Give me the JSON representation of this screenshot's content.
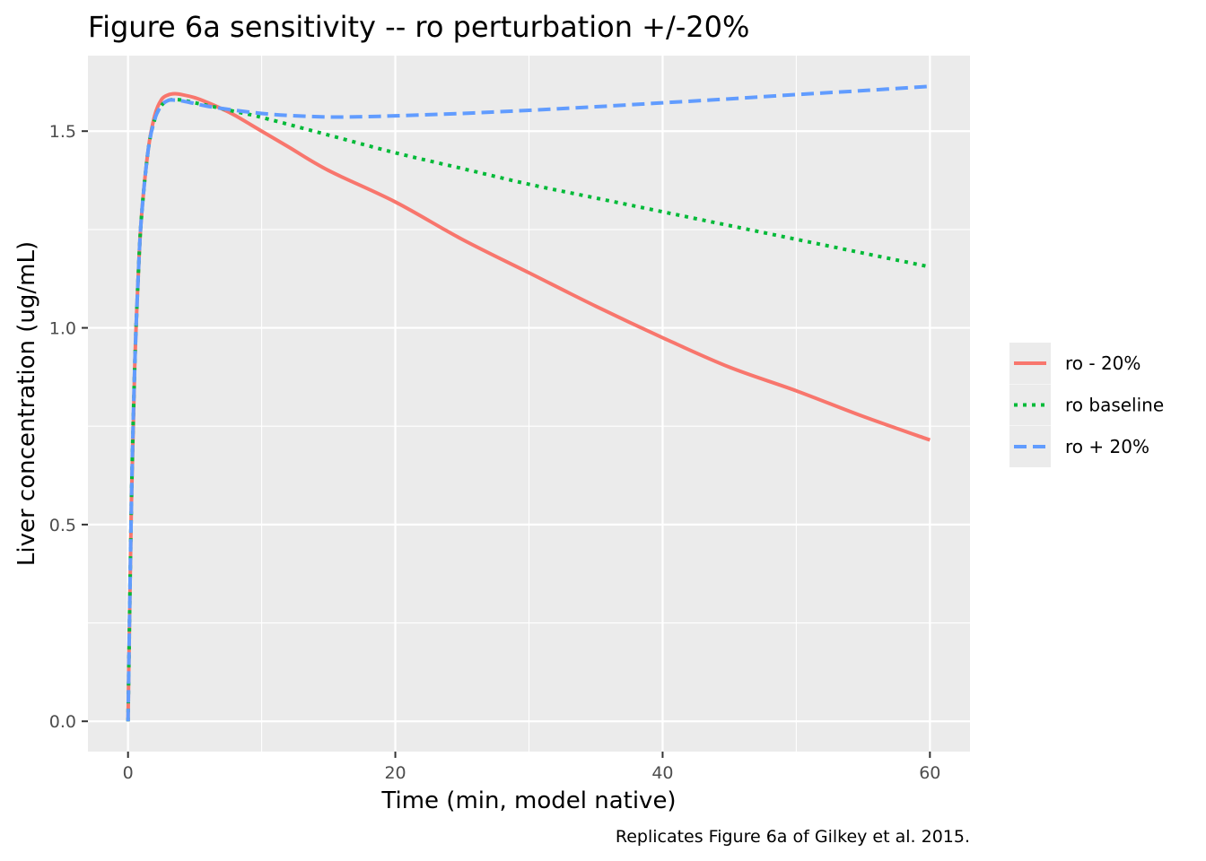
{
  "chart_data": {
    "type": "line",
    "title": "Figure 6a sensitivity -- ro perturbation +/-20%",
    "xlabel": "Time (min, model native)",
    "ylabel": "Liver concentration (ug/mL)",
    "caption": "Replicates Figure 6a of Gilkey et al. 2015.",
    "xlim": [
      -3,
      63
    ],
    "ylim": [
      -0.077,
      1.692
    ],
    "x_ticks": [
      0,
      20,
      40,
      60
    ],
    "x_tick_labels": [
      "0",
      "20",
      "40",
      "60"
    ],
    "x_minor_ticks": [
      10,
      30,
      50
    ],
    "y_ticks": [
      0.0,
      0.5,
      1.0,
      1.5
    ],
    "y_tick_labels": [
      "0.0",
      "0.5",
      "1.0",
      "1.5"
    ],
    "y_minor_ticks": [
      0.25,
      0.75,
      1.25
    ],
    "grid": true,
    "legend_position": "right",
    "series": [
      {
        "name": "ro - 20%",
        "color": "#F8766D",
        "dash": "solid",
        "x": [
          0,
          0.25,
          0.5,
          0.75,
          1,
          1.5,
          2,
          2.5,
          3,
          3.5,
          4,
          5,
          6,
          7,
          8,
          10,
          12,
          15,
          20,
          25,
          30,
          35,
          40,
          45,
          50,
          55,
          60
        ],
        "y": [
          0,
          0.55,
          0.9,
          1.12,
          1.28,
          1.45,
          1.54,
          1.58,
          1.592,
          1.595,
          1.593,
          1.585,
          1.572,
          1.557,
          1.54,
          1.5,
          1.46,
          1.4,
          1.32,
          1.225,
          1.14,
          1.055,
          0.975,
          0.9,
          0.84,
          0.775,
          0.715
        ]
      },
      {
        "name": "ro baseline",
        "color": "#00BA38",
        "dash": "dotted",
        "x": [
          0,
          0.25,
          0.5,
          0.75,
          1,
          1.5,
          2,
          2.5,
          3,
          3.5,
          4,
          5,
          6,
          8,
          10,
          15,
          20,
          25,
          30,
          35,
          40,
          45,
          50,
          55,
          60
        ],
        "y": [
          0,
          0.55,
          0.9,
          1.12,
          1.28,
          1.45,
          1.53,
          1.565,
          1.578,
          1.58,
          1.579,
          1.572,
          1.565,
          1.55,
          1.535,
          1.49,
          1.445,
          1.405,
          1.365,
          1.33,
          1.295,
          1.26,
          1.225,
          1.19,
          1.155
        ]
      },
      {
        "name": "ro + 20%",
        "color": "#619CFF",
        "dash": "dashed",
        "x": [
          0,
          0.25,
          0.5,
          0.75,
          1,
          1.5,
          2,
          2.5,
          3,
          3.5,
          4,
          5,
          6,
          8,
          10,
          12,
          15,
          18,
          20,
          25,
          30,
          35,
          40,
          45,
          50,
          55,
          60
        ],
        "y": [
          0,
          0.55,
          0.9,
          1.12,
          1.28,
          1.45,
          1.53,
          1.565,
          1.578,
          1.579,
          1.577,
          1.57,
          1.563,
          1.553,
          1.545,
          1.54,
          1.536,
          1.537,
          1.539,
          1.545,
          1.553,
          1.562,
          1.572,
          1.582,
          1.593,
          1.603,
          1.614
        ]
      }
    ]
  }
}
